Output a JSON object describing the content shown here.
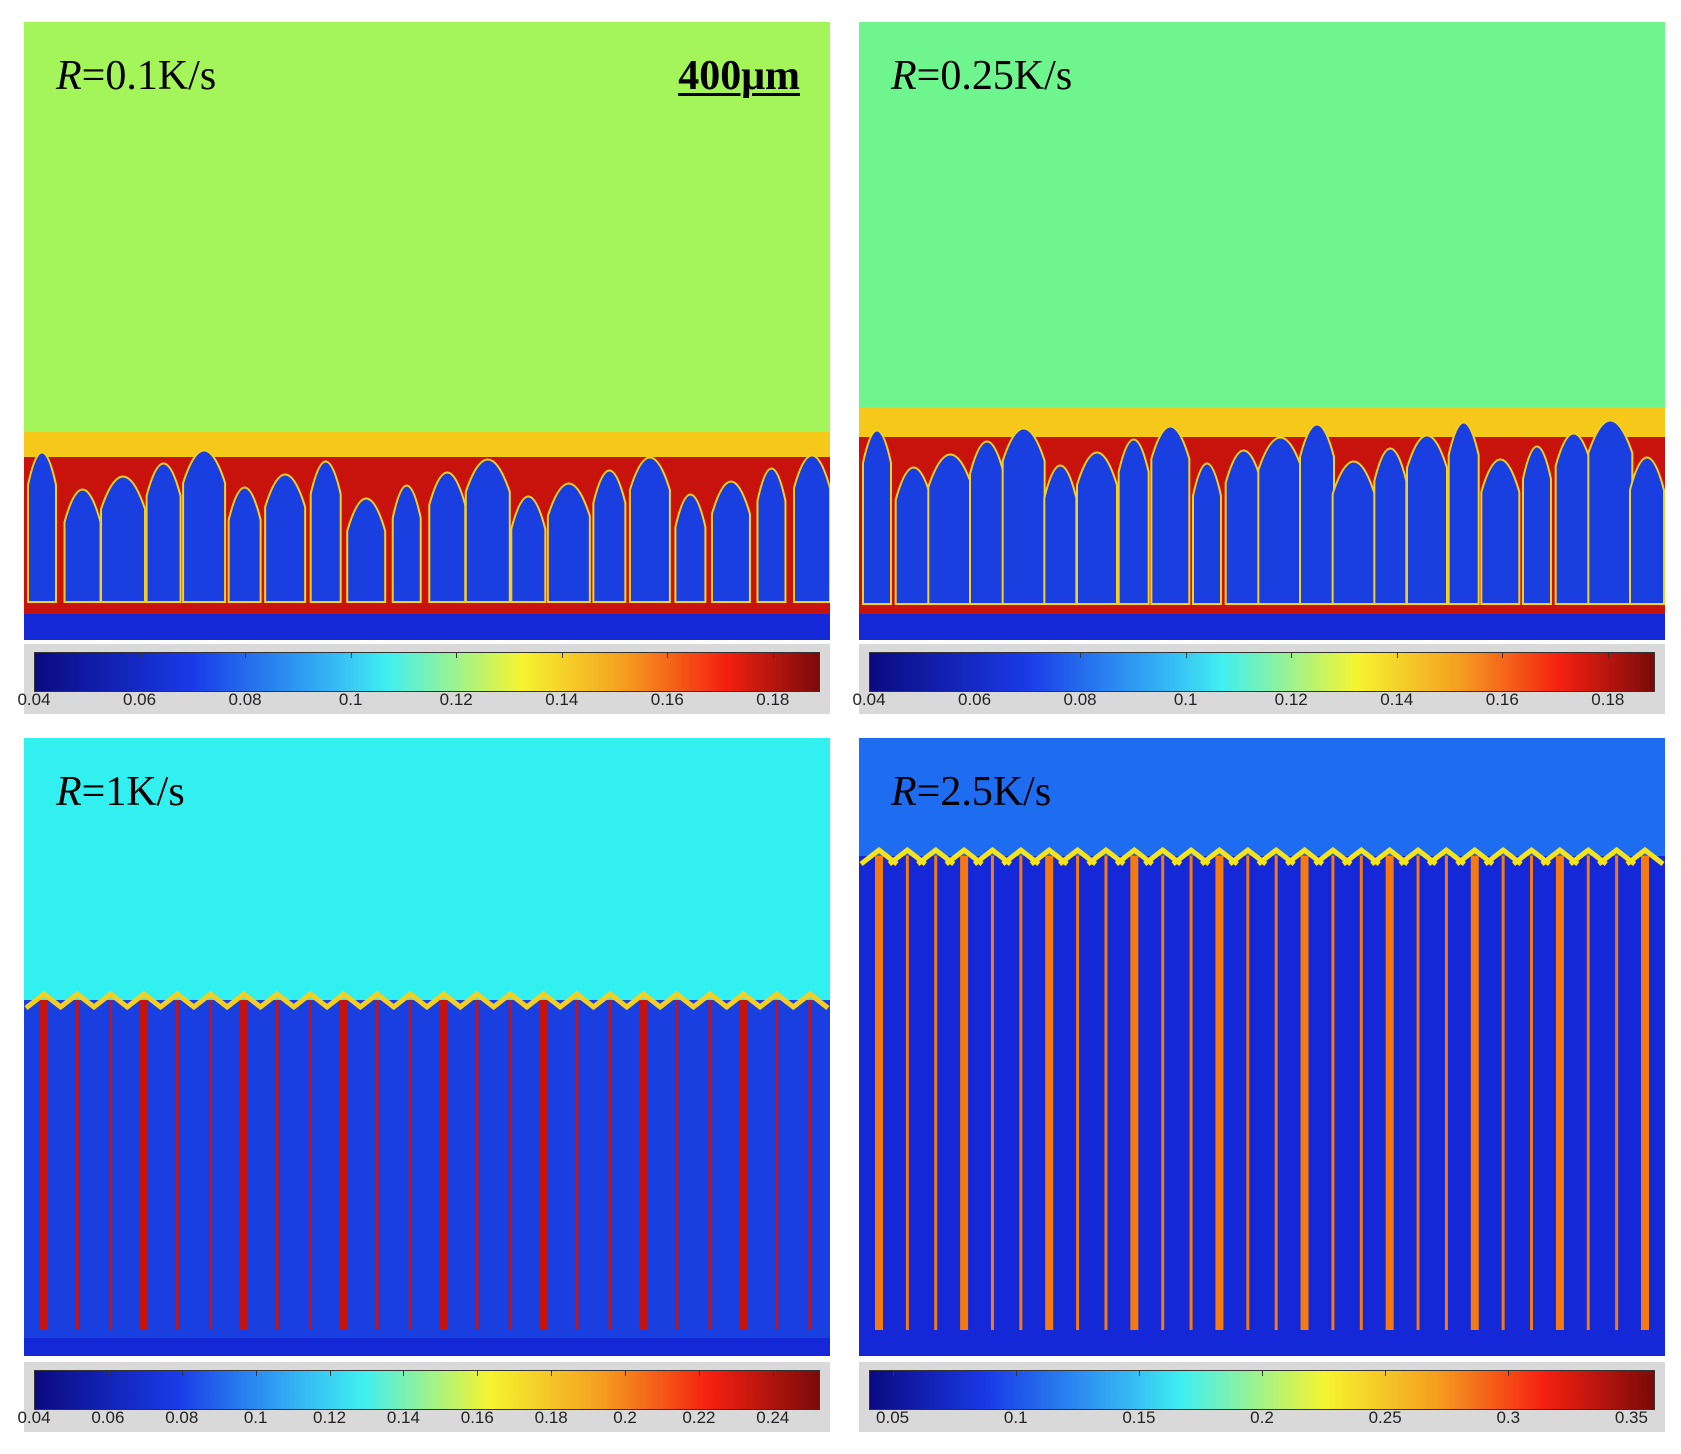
{
  "panels": [
    {
      "id": "a",
      "label_symbol": "R",
      "label_rest": "=0.1K/s",
      "scale_bar": "400μm",
      "liquid_color": "#a4f55a",
      "colorbar_ticks": [
        "0.04",
        "0.06",
        "0.08",
        "0.1",
        "0.12",
        "0.14",
        "0.16",
        "0.18"
      ]
    },
    {
      "id": "b",
      "label_symbol": "R",
      "label_rest": "=0.25K/s",
      "liquid_color": "#6ef58e",
      "colorbar_ticks": [
        "0.04",
        "0.06",
        "0.08",
        "0.1",
        "0.12",
        "0.14",
        "0.16",
        "0.18"
      ]
    },
    {
      "id": "c",
      "label_symbol": "R",
      "label_rest": "=1K/s",
      "liquid_color": "#33f0f0",
      "colorbar_ticks": [
        "0.04",
        "0.06",
        "0.08",
        "0.1",
        "0.12",
        "0.14",
        "0.16",
        "0.18",
        "0.2",
        "0.22",
        "0.24"
      ]
    },
    {
      "id": "d",
      "label_symbol": "R",
      "label_rest": "=2.5K/s",
      "liquid_color": "#1e6cf0",
      "colorbar_ticks": [
        "0.05",
        "0.1",
        "0.15",
        "0.2",
        "0.25",
        "0.3",
        "0.35"
      ]
    }
  ],
  "colors": {
    "solid": "#1a3fe0",
    "boundary_red": "#c8120c",
    "front_yellow": "#f5e41a",
    "base_blue": "#1428d8"
  }
}
